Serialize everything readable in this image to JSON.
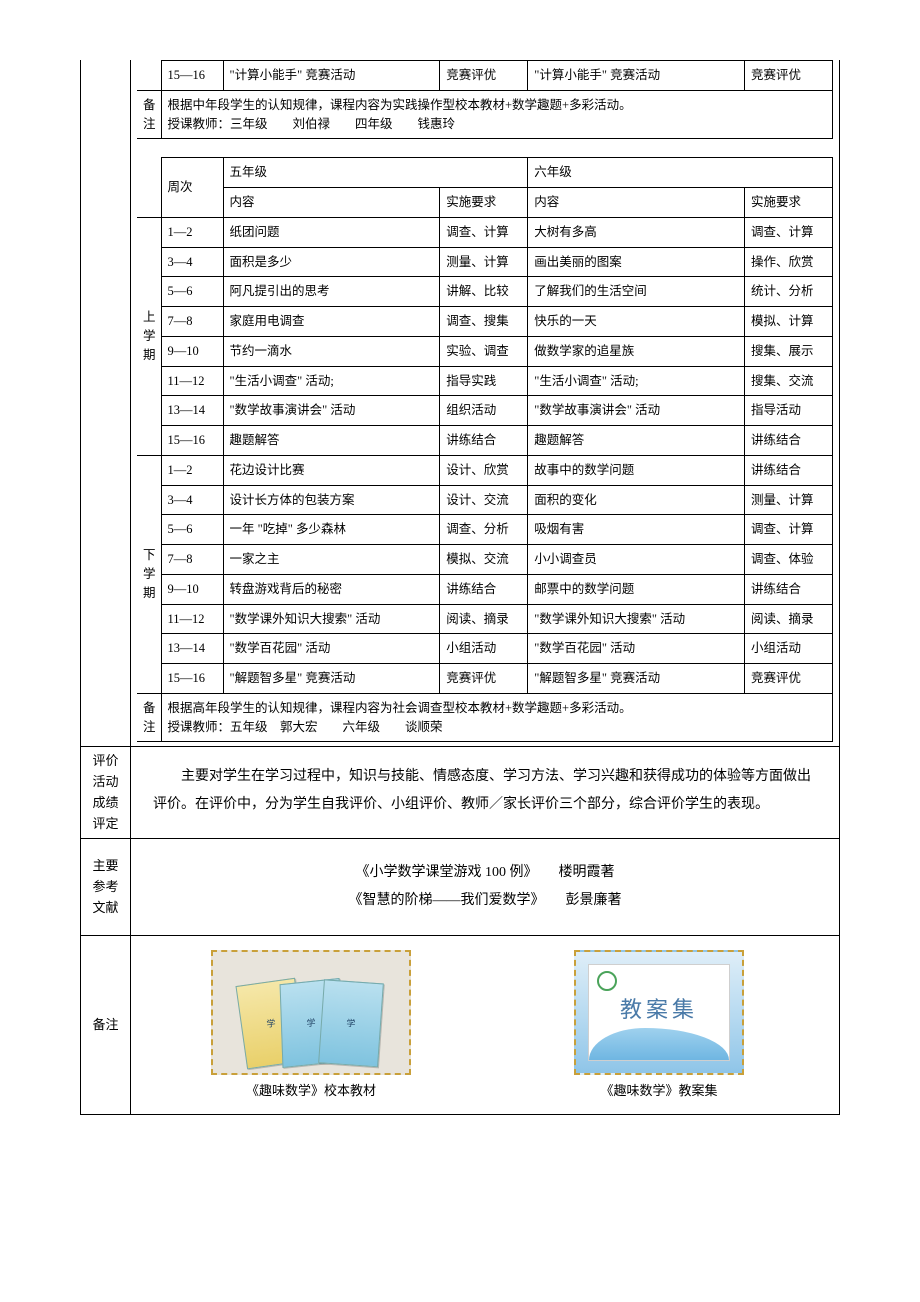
{
  "top_fragment": {
    "week": "15—16",
    "g3_content": "\"计算小能手\" 竞赛活动",
    "g3_req": "竞赛评优",
    "g4_content": "\"计算小能手\" 竞赛活动",
    "g4_req": "竞赛评优"
  },
  "top_note": {
    "label": "备注",
    "line1": "根据中年段学生的认知规律，课程内容为实践操作型校本教材+数学趣题+多彩活动。",
    "line2": "授课教师：三年级　　刘伯禄　　四年级　　钱惠玲"
  },
  "grades56": {
    "header": {
      "week": "周次",
      "g5": "五年级",
      "g6": "六年级",
      "content": "内容",
      "req": "实施要求"
    },
    "sem1_label": "上学期",
    "sem2_label": "下学期",
    "sem1": [
      {
        "week": "1—2",
        "g5c": "纸团问题",
        "g5r": "调查、计算",
        "g6c": "大树有多高",
        "g6r": "调查、计算"
      },
      {
        "week": "3—4",
        "g5c": "面积是多少",
        "g5r": "测量、计算",
        "g6c": "画出美丽的图案",
        "g6r": "操作、欣赏"
      },
      {
        "week": "5—6",
        "g5c": "阿凡提引出的思考",
        "g5r": "讲解、比较",
        "g6c": "了解我们的生活空间",
        "g6r": "统计、分析"
      },
      {
        "week": "7—8",
        "g5c": "家庭用电调查",
        "g5r": "调查、搜集",
        "g6c": "快乐的一天",
        "g6r": "模拟、计算"
      },
      {
        "week": "9—10",
        "g5c": "节约一滴水",
        "g5r": "实验、调查",
        "g6c": "做数学家的追星族",
        "g6r": "搜集、展示"
      },
      {
        "week": "11—12",
        "g5c": "\"生活小调查\" 活动;",
        "g5r": "指导实践",
        "g6c": "\"生活小调查\" 活动;",
        "g6r": "搜集、交流"
      },
      {
        "week": "13—14",
        "g5c": "\"数学故事演讲会\" 活动",
        "g5r": "组织活动",
        "g6c": "\"数学故事演讲会\" 活动",
        "g6r": "指导活动"
      },
      {
        "week": "15—16",
        "g5c": "趣题解答",
        "g5r": "讲练结合",
        "g6c": "趣题解答",
        "g6r": "讲练结合"
      }
    ],
    "sem2": [
      {
        "week": "1—2",
        "g5c": "花边设计比赛",
        "g5r": "设计、欣赏",
        "g6c": "故事中的数学问题",
        "g6r": "讲练结合"
      },
      {
        "week": "3—4",
        "g5c": "设计长方体的包装方案",
        "g5r": "设计、交流",
        "g6c": "面积的变化",
        "g6r": "测量、计算"
      },
      {
        "week": "5—6",
        "g5c": "一年 \"吃掉\" 多少森林",
        "g5r": "调查、分析",
        "g6c": "吸烟有害",
        "g6r": "调查、计算"
      },
      {
        "week": "7—8",
        "g5c": "一家之主",
        "g5r": "模拟、交流",
        "g6c": "小小调查员",
        "g6r": "调查、体验"
      },
      {
        "week": "9—10",
        "g5c": "转盘游戏背后的秘密",
        "g5r": "讲练结合",
        "g6c": "邮票中的数学问题",
        "g6r": "讲练结合"
      },
      {
        "week": "11—12",
        "g5c": "\"数学课外知识大搜索\" 活动",
        "g5r": "阅读、摘录",
        "g6c": "\"数学课外知识大搜索\" 活动",
        "g6r": "阅读、摘录"
      },
      {
        "week": "13—14",
        "g5c": "\"数学百花园\" 活动",
        "g5r": "小组活动",
        "g6c": "\"数学百花园\" 活动",
        "g6r": "小组活动"
      },
      {
        "week": "15—16",
        "g5c": "\"解题智多星\" 竞赛活动",
        "g5r": "竞赛评优",
        "g6c": "\"解题智多星\" 竞赛活动",
        "g6r": "竞赛评优"
      }
    ],
    "note_label": "备注",
    "note_line1": "根据高年段学生的认知规律，课程内容为社会调查型校本教材+数学趣题+多彩活动。",
    "note_line2": "授课教师：五年级　郭大宏　　六年级　　谈顺荣"
  },
  "evaluation": {
    "label": "评价活动成绩评定",
    "text": "主要对学生在学习过程中，知识与技能、情感态度、学习方法、学习兴趣和获得成功的体验等方面做出评价。在评价中，分为学生自我评价、小组评价、教师／家长评价三个部分，综合评价学生的表现。"
  },
  "references": {
    "label": "主要参考文献",
    "line1": "《小学数学课堂游戏 100 例》　　楼明霞著",
    "line2": "《智慧的阶梯——我们爱数学》　　彭景廉著"
  },
  "footer": {
    "label": "备注",
    "cap1": "《趣味数学》校本教材",
    "cap2": "《趣味数学》教案集",
    "stamp_text": "教案集"
  }
}
